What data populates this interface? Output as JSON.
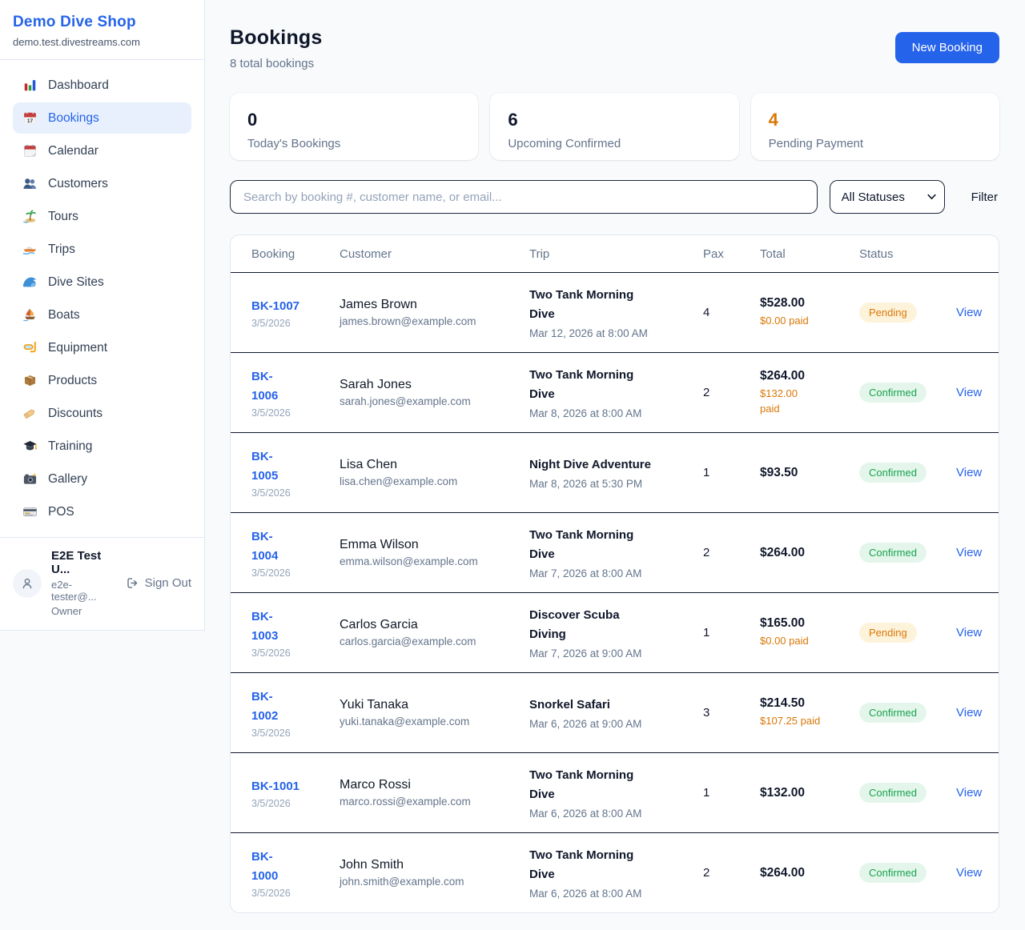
{
  "colors": {
    "accent_blue": "#2563EB",
    "pending_text": "#D97706",
    "pending_bg": "#FDF3DB",
    "confirmed_text": "#16A34A",
    "confirmed_bg": "#E4F6EC",
    "dark_text": "#0F172A",
    "muted_text": "#64748B"
  },
  "sidebar": {
    "brand": {
      "name": "Demo Dive Shop",
      "domain": "demo.test.divestreams.com"
    },
    "nav": [
      {
        "label": "Dashboard",
        "icon": "dashboard-icon",
        "active": false
      },
      {
        "label": "Bookings",
        "icon": "bookings-icon",
        "active": true
      },
      {
        "label": "Calendar",
        "icon": "calendar-icon",
        "active": false
      },
      {
        "label": "Customers",
        "icon": "customers-icon",
        "active": false
      },
      {
        "label": "Tours",
        "icon": "tours-icon",
        "active": false
      },
      {
        "label": "Trips",
        "icon": "trips-icon",
        "active": false
      },
      {
        "label": "Dive Sites",
        "icon": "dive-sites-icon",
        "active": false
      },
      {
        "label": "Boats",
        "icon": "boats-icon",
        "active": false
      },
      {
        "label": "Equipment",
        "icon": "equipment-icon",
        "active": false
      },
      {
        "label": "Products",
        "icon": "products-icon",
        "active": false
      },
      {
        "label": "Discounts",
        "icon": "discounts-icon",
        "active": false
      },
      {
        "label": "Training",
        "icon": "training-icon",
        "active": false
      },
      {
        "label": "Gallery",
        "icon": "gallery-icon",
        "active": false
      },
      {
        "label": "POS",
        "icon": "pos-icon",
        "active": false
      }
    ],
    "user": {
      "name": "E2E Test U...",
      "email": "e2e-tester@...",
      "role": "Owner",
      "sign_out_label": "Sign Out"
    }
  },
  "header": {
    "title": "Bookings",
    "subtitle": "8 total bookings",
    "new_booking_label": "New Booking"
  },
  "stats": [
    {
      "value": "0",
      "label": "Today's Bookings",
      "value_color": "#0F172A"
    },
    {
      "value": "6",
      "label": "Upcoming Confirmed",
      "value_color": "#0F172A"
    },
    {
      "value": "4",
      "label": "Pending Payment",
      "value_color": "#D97706"
    }
  ],
  "controls": {
    "search_placeholder": "Search by booking #, customer name, or email...",
    "status_filter_value": "All Statuses",
    "filter_label": "Filter"
  },
  "table": {
    "columns": [
      "Booking",
      "Customer",
      "Trip",
      "Pax",
      "Total",
      "Status"
    ],
    "view_label": "View",
    "rows": [
      {
        "id": "BK-1007",
        "id_two_lines": false,
        "date": "3/5/2026",
        "customer": "James Brown",
        "email": "james.brown@example.com",
        "trip": "Two Tank Morning Dive",
        "trip_two_lines": true,
        "trip_datetime": "Mar 12, 2026 at 8:00 AM",
        "pax": "4",
        "total": "$528.00",
        "paid": "$0.00 paid",
        "paid_two_lines": false,
        "status": "Pending"
      },
      {
        "id": "BK-1006",
        "id_two_lines": true,
        "date": "3/5/2026",
        "customer": "Sarah Jones",
        "email": "sarah.jones@example.com",
        "trip": "Two Tank Morning Dive",
        "trip_two_lines": true,
        "trip_datetime": "Mar 8, 2026 at 8:00 AM",
        "pax": "2",
        "total": "$264.00",
        "paid": "$132.00 paid",
        "paid_two_lines": true,
        "status": "Confirmed"
      },
      {
        "id": "BK-1005",
        "id_two_lines": true,
        "date": "3/5/2026",
        "customer": "Lisa Chen",
        "email": "lisa.chen@example.com",
        "trip": "Night Dive Adventure",
        "trip_two_lines": false,
        "trip_datetime": "Mar 8, 2026 at 5:30 PM",
        "pax": "1",
        "total": "$93.50",
        "paid": null,
        "paid_two_lines": false,
        "status": "Confirmed"
      },
      {
        "id": "BK-1004",
        "id_two_lines": true,
        "date": "3/5/2026",
        "customer": "Emma Wilson",
        "email": "emma.wilson@example.com",
        "trip": "Two Tank Morning Dive",
        "trip_two_lines": true,
        "trip_datetime": "Mar 7, 2026 at 8:00 AM",
        "pax": "2",
        "total": "$264.00",
        "paid": null,
        "paid_two_lines": false,
        "status": "Confirmed"
      },
      {
        "id": "BK-1003",
        "id_two_lines": true,
        "date": "3/5/2026",
        "customer": "Carlos Garcia",
        "email": "carlos.garcia@example.com",
        "trip": "Discover Scuba Diving",
        "trip_two_lines": true,
        "trip_datetime": "Mar 7, 2026 at 9:00 AM",
        "pax": "1",
        "total": "$165.00",
        "paid": "$0.00 paid",
        "paid_two_lines": false,
        "status": "Pending"
      },
      {
        "id": "BK-1002",
        "id_two_lines": true,
        "date": "3/5/2026",
        "customer": "Yuki Tanaka",
        "email": "yuki.tanaka@example.com",
        "trip": "Snorkel Safari",
        "trip_two_lines": false,
        "trip_datetime": "Mar 6, 2026 at 9:00 AM",
        "pax": "3",
        "total": "$214.50",
        "paid": "$107.25 paid",
        "paid_two_lines": false,
        "status": "Confirmed"
      },
      {
        "id": "BK-1001",
        "id_two_lines": false,
        "date": "3/5/2026",
        "customer": "Marco Rossi",
        "email": "marco.rossi@example.com",
        "trip": "Two Tank Morning Dive",
        "trip_two_lines": true,
        "trip_datetime": "Mar 6, 2026 at 8:00 AM",
        "pax": "1",
        "total": "$132.00",
        "paid": null,
        "paid_two_lines": false,
        "status": "Confirmed"
      },
      {
        "id": "BK-1000",
        "id_two_lines": true,
        "date": "3/5/2026",
        "customer": "John Smith",
        "email": "john.smith@example.com",
        "trip": "Two Tank Morning Dive",
        "trip_two_lines": true,
        "trip_datetime": "Mar 6, 2026 at 8:00 AM",
        "pax": "2",
        "total": "$264.00",
        "paid": null,
        "paid_two_lines": false,
        "status": "Confirmed"
      }
    ]
  }
}
